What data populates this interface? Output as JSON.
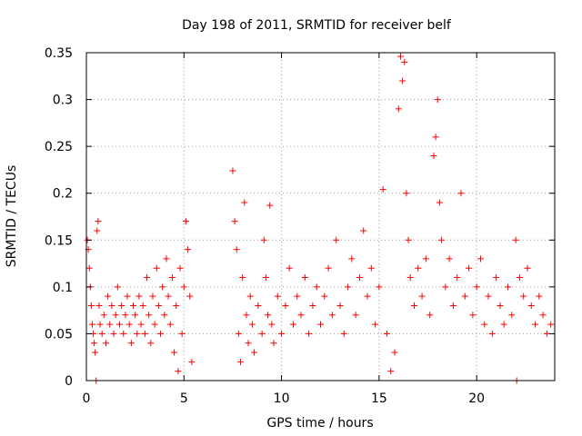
{
  "chart_data": {
    "type": "scatter",
    "title": "Day 198 of 2011, SRMTID for receiver belf",
    "xlabel": "GPS time / hours",
    "ylabel": "SRMTID / TECUs",
    "xlim": [
      0,
      24
    ],
    "ylim": [
      0,
      0.35
    ],
    "xticks": [
      0,
      5,
      10,
      15,
      20
    ],
    "yticks": [
      0,
      0.05,
      0.1,
      0.15,
      0.2,
      0.25,
      0.3,
      0.35
    ],
    "xtick_labels": [
      "0",
      "5",
      "10",
      "15",
      "20"
    ],
    "ytick_labels": [
      "0",
      "0.05",
      "0.1",
      "0.15",
      "0.2",
      "0.25",
      "0.3",
      "0.35"
    ],
    "grid": true,
    "marker": "+",
    "color": "#ff0000",
    "series": [
      {
        "name": "SRMTID",
        "points": [
          [
            0.05,
            0.15
          ],
          [
            0.1,
            0.14
          ],
          [
            0.15,
            0.12
          ],
          [
            0.2,
            0.1
          ],
          [
            0.25,
            0.08
          ],
          [
            0.3,
            0.06
          ],
          [
            0.35,
            0.05
          ],
          [
            0.4,
            0.04
          ],
          [
            0.45,
            0.03
          ],
          [
            0.5,
            0.0
          ],
          [
            0.55,
            0.16
          ],
          [
            0.6,
            0.17
          ],
          [
            0.65,
            0.08
          ],
          [
            0.7,
            0.06
          ],
          [
            0.8,
            0.05
          ],
          [
            0.9,
            0.07
          ],
          [
            1.0,
            0.04
          ],
          [
            1.1,
            0.09
          ],
          [
            1.2,
            0.06
          ],
          [
            1.3,
            0.08
          ],
          [
            1.4,
            0.05
          ],
          [
            1.5,
            0.07
          ],
          [
            1.6,
            0.1
          ],
          [
            1.7,
            0.06
          ],
          [
            1.8,
            0.08
          ],
          [
            1.9,
            0.05
          ],
          [
            2.0,
            0.07
          ],
          [
            2.1,
            0.09
          ],
          [
            2.2,
            0.06
          ],
          [
            2.3,
            0.04
          ],
          [
            2.4,
            0.08
          ],
          [
            2.5,
            0.07
          ],
          [
            2.6,
            0.05
          ],
          [
            2.7,
            0.09
          ],
          [
            2.8,
            0.06
          ],
          [
            2.9,
            0.08
          ],
          [
            3.0,
            0.05
          ],
          [
            3.1,
            0.11
          ],
          [
            3.2,
            0.07
          ],
          [
            3.3,
            0.04
          ],
          [
            3.4,
            0.09
          ],
          [
            3.5,
            0.06
          ],
          [
            3.6,
            0.12
          ],
          [
            3.7,
            0.08
          ],
          [
            3.8,
            0.05
          ],
          [
            3.9,
            0.1
          ],
          [
            4.0,
            0.07
          ],
          [
            4.1,
            0.13
          ],
          [
            4.2,
            0.09
          ],
          [
            4.3,
            0.06
          ],
          [
            4.4,
            0.11
          ],
          [
            4.5,
            0.03
          ],
          [
            4.6,
            0.08
          ],
          [
            4.7,
            0.01
          ],
          [
            4.8,
            0.12
          ],
          [
            4.9,
            0.05
          ],
          [
            5.0,
            0.1
          ],
          [
            5.1,
            0.17
          ],
          [
            5.2,
            0.14
          ],
          [
            5.3,
            0.09
          ],
          [
            5.4,
            0.02
          ],
          [
            7.5,
            0.224
          ],
          [
            7.6,
            0.17
          ],
          [
            7.7,
            0.14
          ],
          [
            7.8,
            0.05
          ],
          [
            7.9,
            0.02
          ],
          [
            8.0,
            0.11
          ],
          [
            8.1,
            0.19
          ],
          [
            8.2,
            0.07
          ],
          [
            8.3,
            0.04
          ],
          [
            8.4,
            0.09
          ],
          [
            8.5,
            0.06
          ],
          [
            8.6,
            0.03
          ],
          [
            8.8,
            0.08
          ],
          [
            9.0,
            0.05
          ],
          [
            9.1,
            0.15
          ],
          [
            9.2,
            0.11
          ],
          [
            9.3,
            0.07
          ],
          [
            9.4,
            0.187
          ],
          [
            9.5,
            0.06
          ],
          [
            9.6,
            0.04
          ],
          [
            9.8,
            0.09
          ],
          [
            10.0,
            0.05
          ],
          [
            10.2,
            0.08
          ],
          [
            10.4,
            0.12
          ],
          [
            10.6,
            0.06
          ],
          [
            10.8,
            0.09
          ],
          [
            11.0,
            0.07
          ],
          [
            11.2,
            0.11
          ],
          [
            11.4,
            0.05
          ],
          [
            11.6,
            0.08
          ],
          [
            11.8,
            0.1
          ],
          [
            12.0,
            0.06
          ],
          [
            12.2,
            0.09
          ],
          [
            12.4,
            0.12
          ],
          [
            12.6,
            0.07
          ],
          [
            12.8,
            0.15
          ],
          [
            13.0,
            0.08
          ],
          [
            13.2,
            0.05
          ],
          [
            13.4,
            0.1
          ],
          [
            13.6,
            0.13
          ],
          [
            13.8,
            0.07
          ],
          [
            14.0,
            0.11
          ],
          [
            14.2,
            0.16
          ],
          [
            14.4,
            0.09
          ],
          [
            14.6,
            0.12
          ],
          [
            14.8,
            0.06
          ],
          [
            15.0,
            0.1
          ],
          [
            15.2,
            0.204
          ],
          [
            15.4,
            0.05
          ],
          [
            15.6,
            0.01
          ],
          [
            15.8,
            0.03
          ],
          [
            16.0,
            0.29
          ],
          [
            16.1,
            0.346
          ],
          [
            16.2,
            0.32
          ],
          [
            16.3,
            0.34
          ],
          [
            16.4,
            0.2
          ],
          [
            16.5,
            0.15
          ],
          [
            16.6,
            0.11
          ],
          [
            16.8,
            0.08
          ],
          [
            17.0,
            0.12
          ],
          [
            17.2,
            0.09
          ],
          [
            17.4,
            0.13
          ],
          [
            17.6,
            0.07
          ],
          [
            17.8,
            0.24
          ],
          [
            17.9,
            0.26
          ],
          [
            18.0,
            0.3
          ],
          [
            18.1,
            0.19
          ],
          [
            18.2,
            0.15
          ],
          [
            18.4,
            0.1
          ],
          [
            18.6,
            0.13
          ],
          [
            18.8,
            0.08
          ],
          [
            19.0,
            0.11
          ],
          [
            19.2,
            0.2
          ],
          [
            19.4,
            0.09
          ],
          [
            19.6,
            0.12
          ],
          [
            19.8,
            0.07
          ],
          [
            20.0,
            0.1
          ],
          [
            20.2,
            0.13
          ],
          [
            20.4,
            0.06
          ],
          [
            20.6,
            0.09
          ],
          [
            20.8,
            0.05
          ],
          [
            21.0,
            0.11
          ],
          [
            21.2,
            0.08
          ],
          [
            21.4,
            0.06
          ],
          [
            21.6,
            0.1
          ],
          [
            21.8,
            0.07
          ],
          [
            22.0,
            0.15
          ],
          [
            22.2,
            0.11
          ],
          [
            22.4,
            0.09
          ],
          [
            22.6,
            0.12
          ],
          [
            22.8,
            0.08
          ],
          [
            23.0,
            0.06
          ],
          [
            23.2,
            0.09
          ],
          [
            23.4,
            0.07
          ],
          [
            23.6,
            0.05
          ],
          [
            23.8,
            0.06
          ],
          [
            22.05,
            0.0
          ]
        ]
      }
    ]
  }
}
